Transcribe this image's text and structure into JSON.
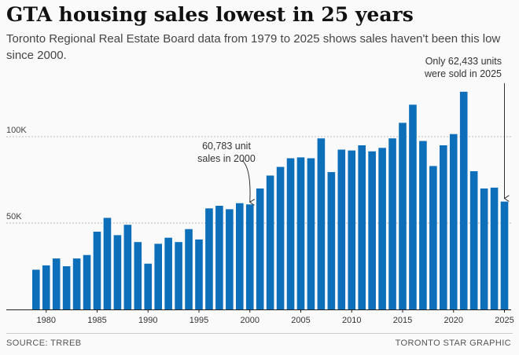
{
  "title": "GTA housing sales lowest in 25 years",
  "subtitle": "Toronto Regional Real Estate Board data from 1979 to 2025 shows sales haven't been this low since 2000.",
  "source": "SOURCE: TRREB",
  "credit": "TORONTO STAR GRAPHIC",
  "colors": {
    "bar": "#0d6fba",
    "grid": "#bdbdbd",
    "axis": "#222222",
    "annotation": "#333333"
  },
  "chart_data": {
    "type": "bar",
    "x": [
      1979,
      1980,
      1981,
      1982,
      1983,
      1984,
      1985,
      1986,
      1987,
      1988,
      1989,
      1990,
      1991,
      1992,
      1993,
      1994,
      1995,
      1996,
      1997,
      1998,
      1999,
      2000,
      2001,
      2002,
      2003,
      2004,
      2005,
      2006,
      2007,
      2008,
      2009,
      2010,
      2011,
      2012,
      2013,
      2014,
      2015,
      2016,
      2017,
      2018,
      2019,
      2020,
      2021,
      2022,
      2023,
      2024,
      2025
    ],
    "values": [
      23000,
      25500,
      29500,
      25000,
      29500,
      31500,
      45000,
      53000,
      43000,
      49000,
      39000,
      26500,
      38000,
      41500,
      39000,
      46500,
      40500,
      58500,
      60000,
      58000,
      61500,
      60783,
      70000,
      77500,
      82500,
      87500,
      88000,
      87500,
      99000,
      79500,
      92500,
      92000,
      95000,
      91500,
      93500,
      99000,
      108000,
      118500,
      97500,
      83000,
      95000,
      101500,
      126000,
      80000,
      70000,
      70500,
      62433
    ],
    "xtick_labels": [
      "1980",
      "1985",
      "1990",
      "1995",
      "2000",
      "2005",
      "2010",
      "2015",
      "2020",
      "2025"
    ],
    "xtick_values": [
      1980,
      1985,
      1990,
      1995,
      2000,
      2005,
      2010,
      2015,
      2020,
      2025
    ],
    "ytick_labels": [
      "50K",
      "100K"
    ],
    "ytick_values": [
      50000,
      100000
    ],
    "ylim": [
      0,
      130000
    ],
    "grid": true,
    "annotations": [
      {
        "year": 2000,
        "lines": [
          "60,783 unit",
          "sales in 2000"
        ]
      },
      {
        "year": 2025,
        "lines": [
          "Only 62,433 units",
          "were sold in 2025"
        ]
      }
    ]
  }
}
